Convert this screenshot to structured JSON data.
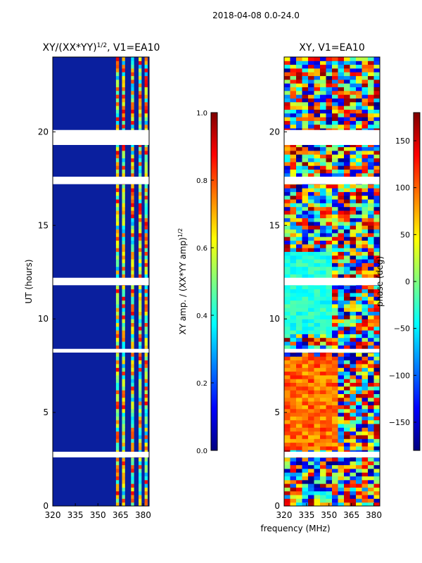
{
  "figure": {
    "suptitle": "2018-04-08 0.0-24.0",
    "shared_xlabel": "frequency (MHz)"
  },
  "chart_data": [
    {
      "type": "heatmap",
      "title": "XY/(XX*YY)",
      "title_sup": "1/2",
      "title_tail": ", V1=EA10",
      "xlabel": "",
      "ylabel": "UT (hours)",
      "xlim": [
        320,
        384
      ],
      "ylim": [
        0,
        24
      ],
      "xticks": [
        320,
        335,
        350,
        365,
        380
      ],
      "yticks": [
        0,
        5,
        10,
        15,
        20
      ],
      "background_color": "#0a1f9e",
      "rfi_channel_bands": [
        [
          362,
          364
        ],
        [
          366,
          368
        ],
        [
          372,
          374
        ],
        [
          377,
          379
        ],
        [
          381,
          383
        ]
      ],
      "missing_time_ranges": [
        [
          19.3,
          20.1
        ],
        [
          17.2,
          17.6
        ],
        [
          11.8,
          12.2
        ],
        [
          2.6,
          2.9
        ],
        [
          8.2,
          8.4
        ]
      ],
      "colorbar": {
        "label": "XY amp. / (XX*YY amp)",
        "label_sup": "1/2",
        "vmin": 0.0,
        "vmax": 1.0,
        "ticks": [
          "0.0",
          "0.2",
          "0.4",
          "0.6",
          "0.8",
          "1.0"
        ],
        "colormap": "jet"
      }
    },
    {
      "type": "heatmap",
      "title": "XY, V1=EA10",
      "xlabel": "",
      "ylabel": "",
      "xlim": [
        320,
        384
      ],
      "ylim": [
        0,
        24
      ],
      "xticks": [
        320,
        335,
        350,
        365,
        380
      ],
      "yticks": [
        0,
        5,
        10,
        15,
        20
      ],
      "missing_time_ranges": [
        [
          19.3,
          20.1
        ],
        [
          17.2,
          17.6
        ],
        [
          11.8,
          12.2
        ],
        [
          2.6,
          2.9
        ],
        [
          8.2,
          8.4
        ]
      ],
      "colorbar": {
        "label": "phase (deg)",
        "vmin": -180,
        "vmax": 180,
        "ticks": [
          "150",
          "100",
          "50",
          "0",
          "−50",
          "−100",
          "−150"
        ],
        "tick_values": [
          150,
          100,
          50,
          0,
          -50,
          -100,
          -150
        ],
        "colormap": "jet"
      }
    }
  ],
  "colors": {
    "jet_stops": [
      "#00007f",
      "#0000ff",
      "#007fff",
      "#00ffff",
      "#7fff7f",
      "#ffff00",
      "#ff7f00",
      "#ff0000",
      "#7f0000"
    ]
  }
}
